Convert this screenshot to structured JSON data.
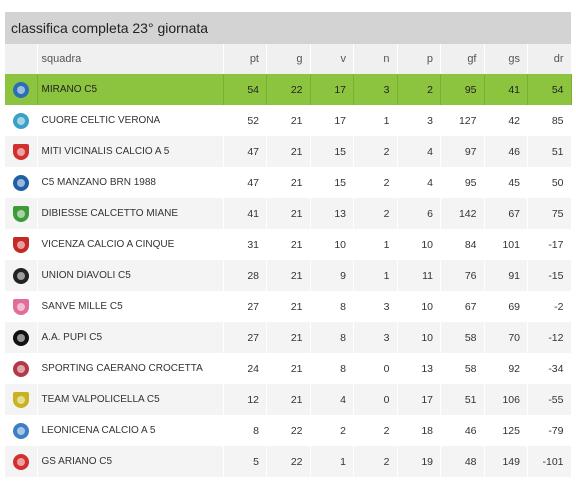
{
  "title": "classifica completa 23° giornata",
  "columns": [
    "squadra",
    "pt",
    "g",
    "v",
    "n",
    "p",
    "gf",
    "gs",
    "dr"
  ],
  "rows": [
    {
      "name": "MIRANO C5",
      "pt": "54",
      "g": "22",
      "v": "17",
      "n": "3",
      "p": "2",
      "gf": "95",
      "gs": "41",
      "dr": "54",
      "logo_icon": "mirano-crest-icon",
      "logo_color": "#2a6fb5",
      "shape": "round"
    },
    {
      "name": "CUORE CELTIC VERONA",
      "pt": "52",
      "g": "21",
      "v": "17",
      "n": "1",
      "p": "3",
      "gf": "127",
      "gs": "42",
      "dr": "85",
      "logo_icon": "cuore-celtic-crest-icon",
      "logo_color": "#3aa0c8",
      "shape": "round"
    },
    {
      "name": "MITI VICINALIS CALCIO A 5",
      "pt": "47",
      "g": "21",
      "v": "15",
      "n": "2",
      "p": "4",
      "gf": "97",
      "gs": "46",
      "dr": "51",
      "logo_icon": "miti-vicinalis-crest-icon",
      "logo_color": "#d32f2f",
      "shape": "shield"
    },
    {
      "name": "C5 MANZANO BRN 1988",
      "pt": "47",
      "g": "21",
      "v": "15",
      "n": "2",
      "p": "4",
      "gf": "95",
      "gs": "45",
      "dr": "50",
      "logo_icon": "manzano-crest-icon",
      "logo_color": "#1f5fa8",
      "shape": "round"
    },
    {
      "name": "DIBIESSE CALCETTO MIANE",
      "pt": "41",
      "g": "21",
      "v": "13",
      "n": "2",
      "p": "6",
      "gf": "142",
      "gs": "67",
      "dr": "75",
      "logo_icon": "dibiesse-crest-icon",
      "logo_color": "#3e9b3a",
      "shape": "shield"
    },
    {
      "name": "VICENZA CALCIO A CINQUE",
      "pt": "31",
      "g": "21",
      "v": "10",
      "n": "1",
      "p": "10",
      "gf": "84",
      "gs": "101",
      "dr": "-17",
      "logo_icon": "vicenza-crest-icon",
      "logo_color": "#c62828",
      "shape": "shield"
    },
    {
      "name": "UNION DIAVOLI C5",
      "pt": "28",
      "g": "21",
      "v": "9",
      "n": "1",
      "p": "11",
      "gf": "76",
      "gs": "91",
      "dr": "-15",
      "logo_icon": "union-diavoli-crest-icon",
      "logo_color": "#222222",
      "shape": "round"
    },
    {
      "name": "SANVE MILLE C5",
      "pt": "27",
      "g": "21",
      "v": "8",
      "n": "3",
      "p": "10",
      "gf": "67",
      "gs": "69",
      "dr": "-2",
      "logo_icon": "sanve-mille-crest-icon",
      "logo_color": "#e06d9a",
      "shape": "shield"
    },
    {
      "name": "A.A. PUPI C5",
      "pt": "27",
      "g": "21",
      "v": "8",
      "n": "3",
      "p": "10",
      "gf": "58",
      "gs": "70",
      "dr": "-12",
      "logo_icon": "pupi-crest-icon",
      "logo_color": "#111111",
      "shape": "round"
    },
    {
      "name": "SPORTING CAERANO CROCETTA",
      "pt": "24",
      "g": "21",
      "v": "8",
      "n": "0",
      "p": "13",
      "gf": "58",
      "gs": "92",
      "dr": "-34",
      "logo_icon": "sporting-caerano-crest-icon",
      "logo_color": "#b23a48",
      "shape": "round"
    },
    {
      "name": "TEAM VALPOLICELLA C5",
      "pt": "12",
      "g": "21",
      "v": "4",
      "n": "0",
      "p": "17",
      "gf": "51",
      "gs": "106",
      "dr": "-55",
      "logo_icon": "valpolicella-crest-icon",
      "logo_color": "#c9b21e",
      "shape": "shield"
    },
    {
      "name": "LEONICENA CALCIO A 5",
      "pt": "8",
      "g": "22",
      "v": "2",
      "n": "2",
      "p": "18",
      "gf": "46",
      "gs": "125",
      "dr": "-79",
      "logo_icon": "leonicena-crest-icon",
      "logo_color": "#3d7fc4",
      "shape": "round"
    },
    {
      "name": "GS ARIANO C5",
      "pt": "5",
      "g": "22",
      "v": "1",
      "n": "2",
      "p": "19",
      "gf": "48",
      "gs": "149",
      "dr": "-101",
      "logo_icon": "ariano-crest-icon",
      "logo_color": "#d32f2f",
      "shape": "round"
    }
  ],
  "colors": {
    "title_bg": "#d3d3d3",
    "header_bg": "#f0f0f0",
    "leader_bg": "#8cc43f",
    "row_alt_bg": "#f4f4f4"
  }
}
